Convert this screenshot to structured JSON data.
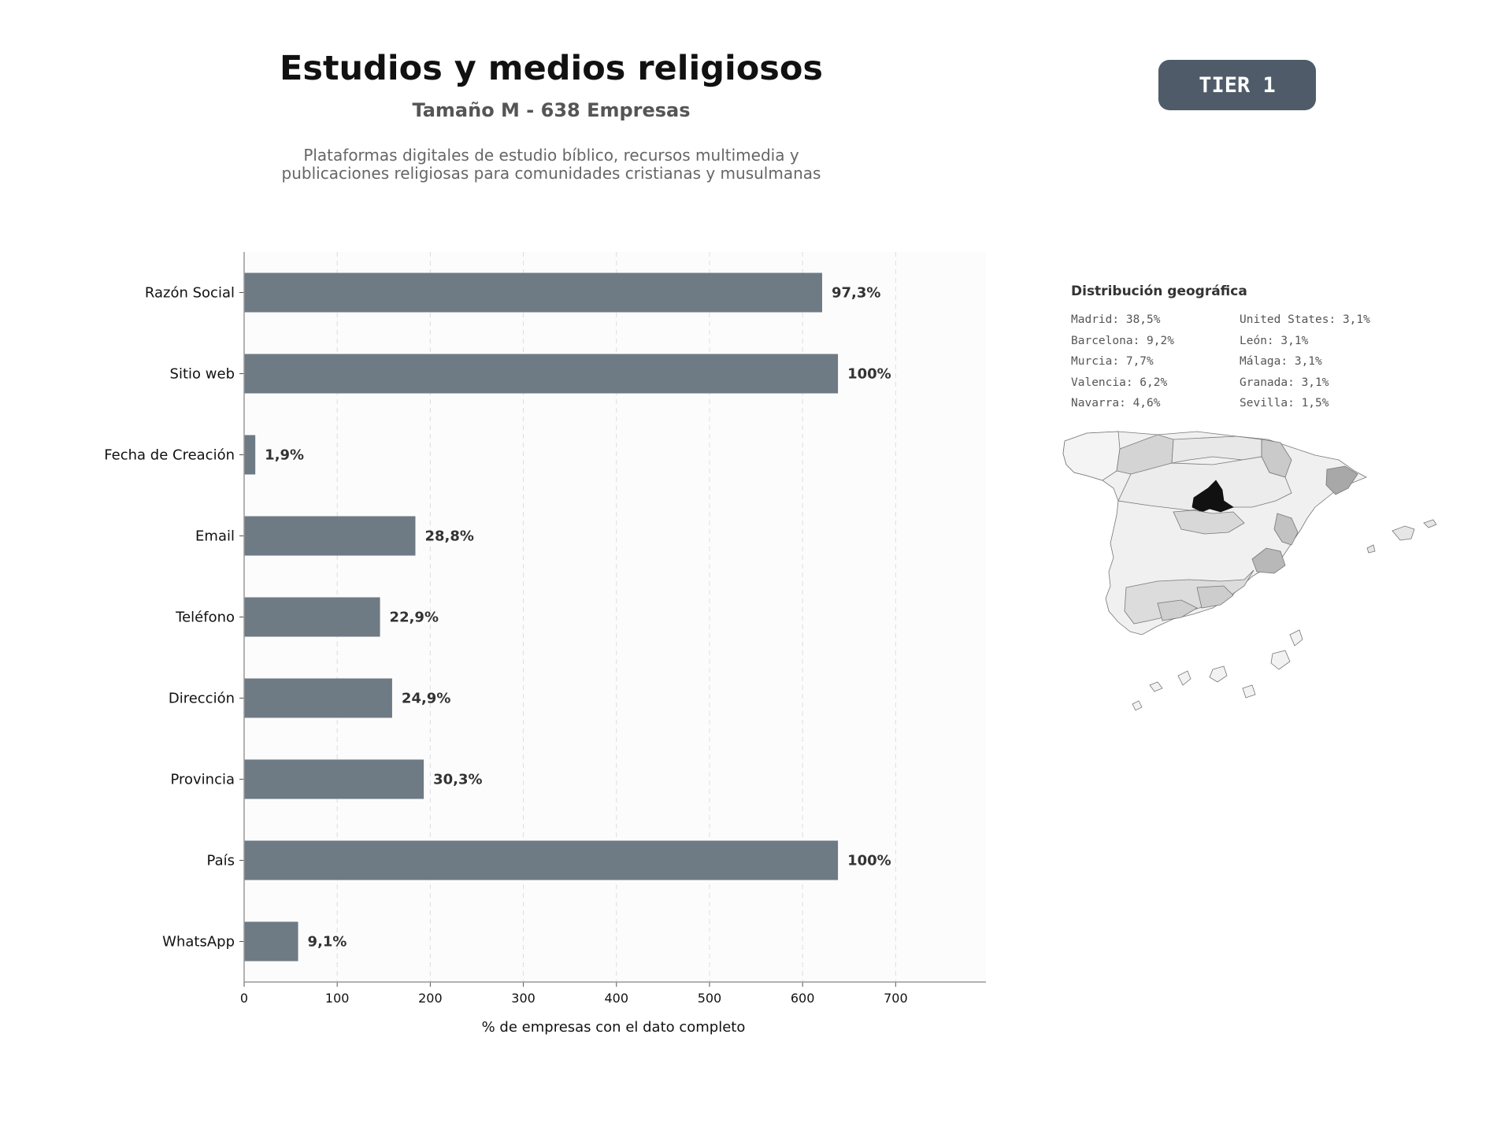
{
  "header": {
    "title": "Estudios y medios religiosos",
    "subtitle": "Tamaño M - 638 Empresas",
    "description_line1": "Plataformas digitales de estudio bíblico, recursos multimedia y",
    "description_line2": "publicaciones religiosas para comunidades cristianas y musulmanas",
    "tier_badge": "TIER 1"
  },
  "colors": {
    "bar": "#6e7a84",
    "badge": "#4f5b68",
    "map_highlight": "#111111"
  },
  "chart_data": {
    "type": "bar",
    "orientation": "horizontal",
    "categories": [
      "Razón Social",
      "Sitio web",
      "Fecha de Creación",
      "Email",
      "Teléfono",
      "Dirección",
      "Provincia",
      "País",
      "WhatsApp"
    ],
    "values": [
      621,
      638,
      12,
      184,
      146,
      159,
      193,
      638,
      58
    ],
    "value_labels": [
      "97,3%",
      "100%",
      "1,9%",
      "28,8%",
      "22,9%",
      "24,9%",
      "30,3%",
      "100%",
      "9,1%"
    ],
    "xlabel": "% de empresas con el dato completo",
    "xlim": [
      0,
      797
    ],
    "xticks": [
      0,
      100,
      200,
      300,
      400,
      500,
      600,
      700
    ],
    "grid": "vertical-dashed"
  },
  "geo": {
    "title": "Distribución geográfica",
    "items": [
      "Madrid: 38,5%",
      "Barcelona: 9,2%",
      "Murcia: 7,7%",
      "Valencia: 6,2%",
      "Navarra: 4,6%",
      "United States: 3,1%",
      "León: 3,1%",
      "Málaga: 3,1%",
      "Granada: 3,1%",
      "Sevilla: 1,5%"
    ]
  }
}
